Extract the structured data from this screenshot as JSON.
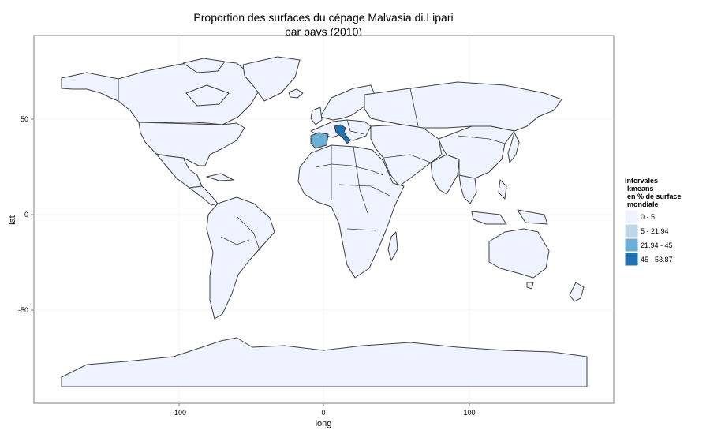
{
  "map": {
    "title_line1": "Proportion des surfaces du cépage Malvasia.di.Lipari",
    "title_line2": "par pays (2010)",
    "xlabel": "long",
    "ylabel": "lat",
    "x_ticks": [
      "-100",
      "0",
      "100"
    ],
    "y_ticks": [
      "50",
      "0",
      "-50"
    ],
    "legend": {
      "title_lines": [
        "Intervales",
        "kmeans",
        "en % de surface",
        "mondiale"
      ],
      "items": [
        {
          "label": "0 - 5",
          "color": "#eef3ff"
        },
        {
          "label": "5 - 21.94",
          "color": "#bdd7e7"
        },
        {
          "label": "21.94 - 45",
          "color": "#6baed6"
        },
        {
          "label": "45 - 53.87",
          "color": "#2171b5"
        }
      ]
    },
    "colors": {
      "country_fill": "#eef3ff",
      "country_stroke": "#404040",
      "spain": "#6baed6",
      "italy": "#2171b5",
      "grid": "#f0f0f0",
      "panel_border": "#7f7f7f"
    }
  }
}
